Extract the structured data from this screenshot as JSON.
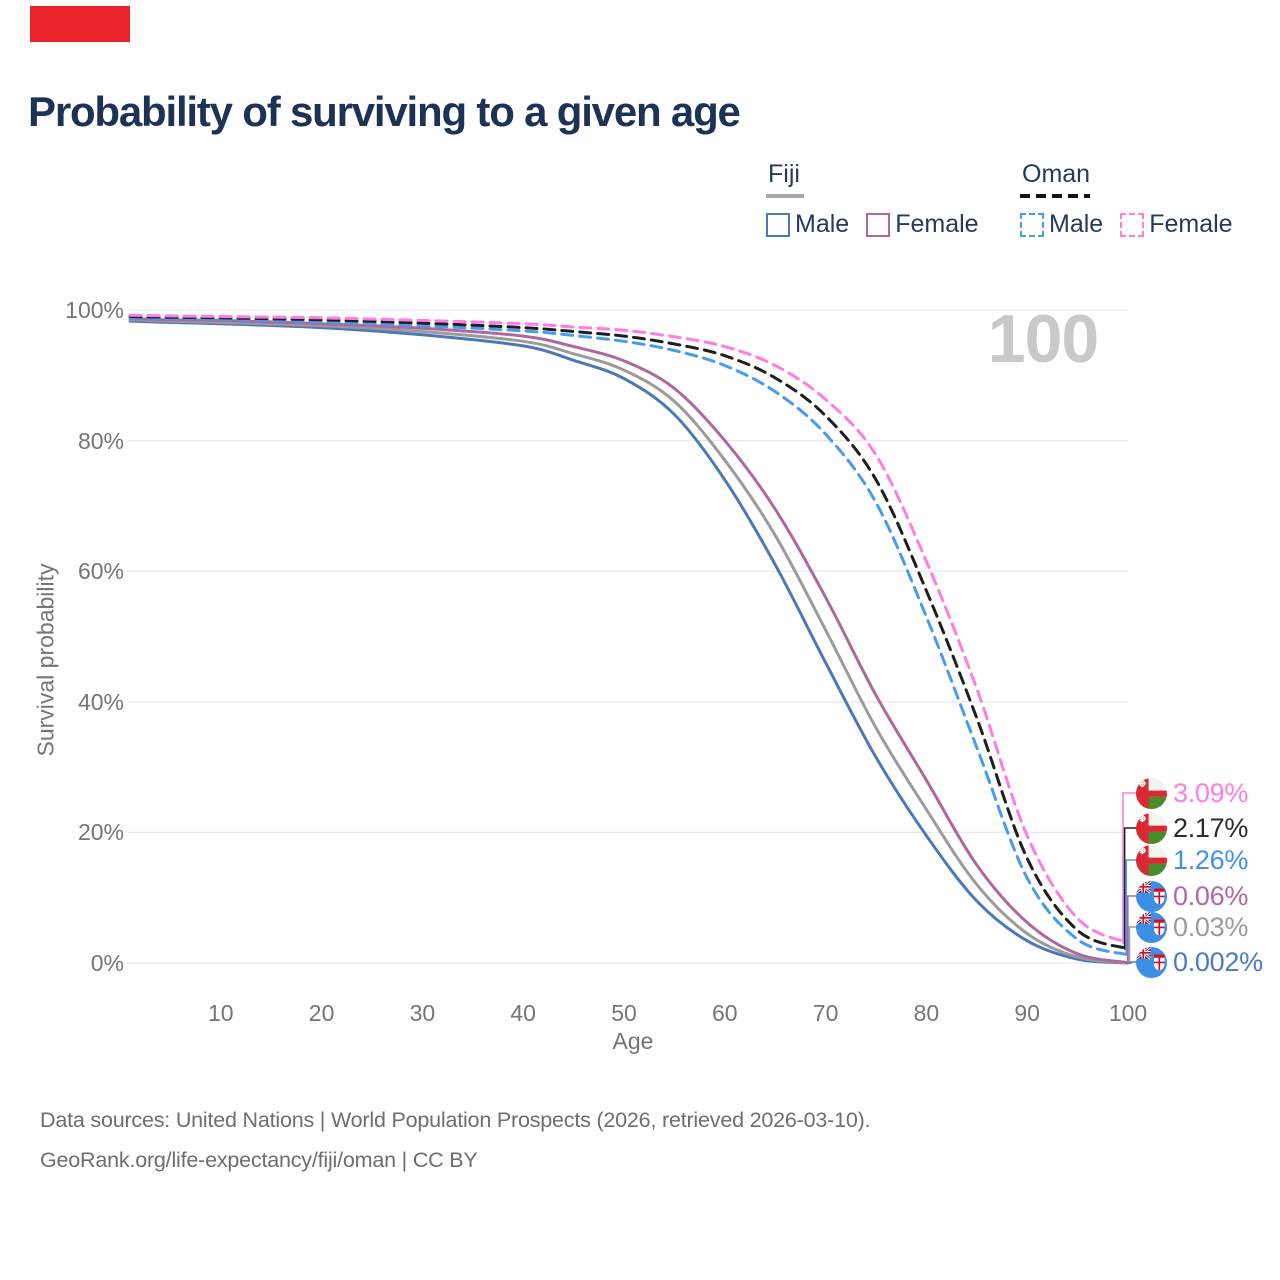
{
  "annotation": {
    "marker_color": "#e9252b"
  },
  "header": {
    "title": "Probability of surviving to a given age"
  },
  "legend": {
    "groups": [
      {
        "label": "Fiji",
        "swatch_style": "solid",
        "swatch_color": "#a8a8a8",
        "items": [
          {
            "label": "Male",
            "color": "#4b79b7",
            "dashed": false
          },
          {
            "label": "Female",
            "color": "#ad689f",
            "dashed": false
          }
        ]
      },
      {
        "label": "Oman",
        "swatch_style": "dashed",
        "swatch_color": "#141414",
        "items": [
          {
            "label": "Male",
            "color": "#469cf0",
            "dashed": true
          },
          {
            "label": "Female",
            "color": "#ff7de2",
            "dashed": true
          }
        ]
      }
    ]
  },
  "chart_data": {
    "type": "line",
    "title": "Probability of surviving to a given age",
    "xlabel": "Age",
    "ylabel": "Survival probability",
    "watermark": "100",
    "xlim": [
      1,
      100
    ],
    "ylim": [
      0,
      100
    ],
    "grid": "horizontal",
    "x_ticks": [
      "10",
      "20",
      "30",
      "40",
      "50",
      "60",
      "70",
      "80",
      "90",
      "100"
    ],
    "x_tick_values": [
      10,
      20,
      30,
      40,
      50,
      60,
      70,
      80,
      90,
      100
    ],
    "y_ticks": [
      "0%",
      "20%",
      "40%",
      "60%",
      "80%",
      "100%"
    ],
    "y_tick_values": [
      0,
      20,
      40,
      60,
      80,
      100
    ],
    "x": [
      1,
      5,
      10,
      20,
      30,
      40,
      45,
      50,
      55,
      60,
      65,
      70,
      75,
      80,
      85,
      90,
      95,
      100
    ],
    "series": [
      {
        "name": "Fiji Male",
        "country": "Fiji",
        "sex": "Male",
        "color": "#4b79b7",
        "dashed": false,
        "values": [
          98.3,
          98.1,
          97.9,
          97.3,
          96.2,
          94.5,
          92.3,
          89.5,
          84.0,
          74.0,
          61.0,
          46.0,
          31.5,
          19.5,
          9.5,
          3.4,
          0.6,
          0.002
        ],
        "end_label": "0.002%",
        "end_label_color": "#4a7cc4"
      },
      {
        "name": "Fiji Both sexes",
        "country": "Fiji",
        "sex": "Both",
        "color": "#9b9b9b",
        "dashed": false,
        "values": [
          98.5,
          98.3,
          98.1,
          97.6,
          96.7,
          95.2,
          93.3,
          90.8,
          86.0,
          77.0,
          65.5,
          51.0,
          36.0,
          23.5,
          12.0,
          4.5,
          0.9,
          0.03
        ],
        "end_label": "0.03%",
        "end_label_color": "#9b9b9b"
      },
      {
        "name": "Fiji Female",
        "country": "Fiji",
        "sex": "Female",
        "color": "#ad689f",
        "dashed": false,
        "values": [
          98.7,
          98.5,
          98.4,
          97.9,
          97.2,
          96.0,
          94.4,
          92.2,
          88.0,
          80.0,
          69.5,
          56.0,
          41.0,
          28.0,
          15.0,
          6.2,
          1.4,
          0.06
        ],
        "end_label": "0.06%",
        "end_label_color": "#b269a3"
      },
      {
        "name": "Oman Male",
        "country": "Oman",
        "sex": "Male",
        "color": "#469cf0",
        "dashed": true,
        "values": [
          98.8,
          98.7,
          98.6,
          98.2,
          97.6,
          96.8,
          96.1,
          95.2,
          93.8,
          91.5,
          87.5,
          81.0,
          70.5,
          53.0,
          33.0,
          13.0,
          3.6,
          1.26
        ],
        "end_label": "1.26%",
        "end_label_color": "#4190ef"
      },
      {
        "name": "Oman Both sexes",
        "country": "Oman",
        "sex": "Both",
        "color": "#1f1f1f",
        "dashed": true,
        "values": [
          99.0,
          98.9,
          98.8,
          98.5,
          98.0,
          97.3,
          96.7,
          96.0,
          94.8,
          93.0,
          89.6,
          83.8,
          74.0,
          57.0,
          37.5,
          16.0,
          5.0,
          2.17
        ],
        "end_label": "2.17%",
        "end_label_color": "#2b2b2b"
      },
      {
        "name": "Oman Female",
        "country": "Oman",
        "sex": "Female",
        "color": "#ff7de2",
        "dashed": true,
        "values": [
          99.2,
          99.1,
          99.0,
          98.8,
          98.4,
          97.9,
          97.4,
          96.9,
          95.9,
          94.4,
          91.5,
          86.3,
          77.8,
          61.5,
          42.0,
          19.5,
          6.8,
          3.09
        ],
        "end_label": "3.09%",
        "end_label_color": "#ff7de2"
      }
    ]
  },
  "footer": {
    "line1": "Data sources: United Nations | World Population Prospects (2026, retrieved 2026-03-10).",
    "line2": "GeoRank.org/life-expectancy/fiji/oman | CC BY"
  }
}
